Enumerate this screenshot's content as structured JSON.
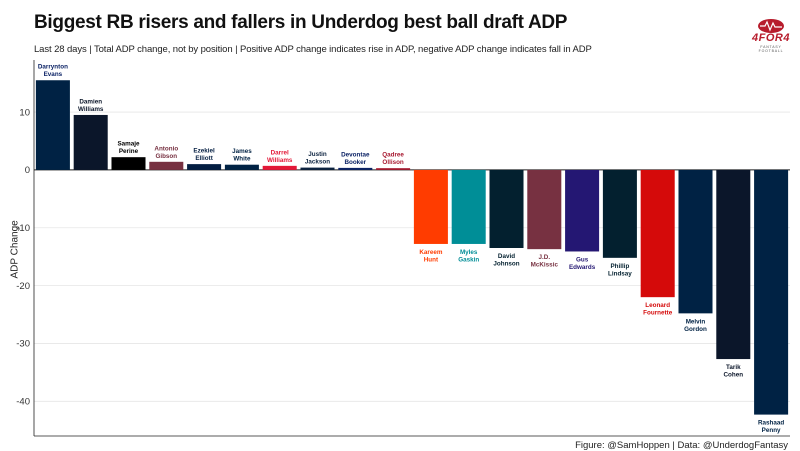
{
  "title": "Biggest RB risers and fallers in Underdog best ball draft ADP",
  "subtitle": "Last 28 days | Total ADP change, not by position | Positive ADP change indicates rise in ADP, negative ADP change indicates fall in ADP",
  "caption": "Figure: @SamHoppen | Data: @UnderdogFantasy",
  "logo": {
    "text": "4FOR4",
    "subtext": "FANTASY FOOTBALL",
    "icon": "football-heartbeat-icon",
    "color": "#b71c2c"
  },
  "chart_data": {
    "type": "bar",
    "title": "Biggest RB risers and fallers in Underdog best ball draft ADP",
    "xlabel": "",
    "ylabel": "ADP Change",
    "ylim": [
      -46,
      19
    ],
    "yticks": [
      10,
      0,
      -10,
      -20,
      -30,
      -40
    ],
    "grid": true,
    "legend": "none",
    "bars": [
      {
        "label": [
          "Darrynton",
          "Evans"
        ],
        "value": 15.5,
        "color": "#002244",
        "label_color": "#0b2265"
      },
      {
        "label": [
          "Damien",
          "Williams"
        ],
        "value": 9.5,
        "color": "#0b162a",
        "label_color": "#0b162a"
      },
      {
        "label": [
          "Samaje",
          "Perine"
        ],
        "value": 2.2,
        "color": "#000000",
        "label_color": "#000000"
      },
      {
        "label": [
          "Antonio",
          "Gibson"
        ],
        "value": 1.4,
        "color": "#773141",
        "label_color": "#773141"
      },
      {
        "label": [
          "Ezekiel",
          "Elliott"
        ],
        "value": 1.0,
        "color": "#041e42",
        "label_color": "#041e42"
      },
      {
        "label": [
          "James",
          "White"
        ],
        "value": 0.9,
        "color": "#002244",
        "label_color": "#002244"
      },
      {
        "label": [
          "Darrel",
          "Williams"
        ],
        "value": 0.7,
        "color": "#e31837",
        "label_color": "#e31837"
      },
      {
        "label": [
          "Justin",
          "Jackson"
        ],
        "value": 0.4,
        "color": "#0c2340",
        "label_color": "#0c2340"
      },
      {
        "label": [
          "Devontae",
          "Booker"
        ],
        "value": 0.35,
        "color": "#0b2265",
        "label_color": "#0b2265"
      },
      {
        "label": [
          "Qadree",
          "Ollison"
        ],
        "value": 0.3,
        "color": "#a71930",
        "label_color": "#a71930"
      },
      {
        "label": [
          "Kareem",
          "Hunt"
        ],
        "value": -12.8,
        "color": "#ff3c00",
        "label_color": "#ff3c00"
      },
      {
        "label": [
          "Myles",
          "Gaskin"
        ],
        "value": -12.8,
        "color": "#008e97",
        "label_color": "#008e97"
      },
      {
        "label": [
          "David",
          "Johnson"
        ],
        "value": -13.5,
        "color": "#03202f",
        "label_color": "#03202f"
      },
      {
        "label": [
          "J.D.",
          "McKissic"
        ],
        "value": -13.7,
        "color": "#773141",
        "label_color": "#773141"
      },
      {
        "label": [
          "Gus",
          "Edwards"
        ],
        "value": -14.1,
        "color": "#241773",
        "label_color": "#241773"
      },
      {
        "label": [
          "Phillip",
          "Lindsay"
        ],
        "value": -15.2,
        "color": "#03202f",
        "label_color": "#03202f"
      },
      {
        "label": [
          "Leonard",
          "Fournette"
        ],
        "value": -22.0,
        "color": "#d50a0a",
        "label_color": "#d50a0a"
      },
      {
        "label": [
          "Melvin",
          "Gordon"
        ],
        "value": -24.8,
        "color": "#002244",
        "label_color": "#002244"
      },
      {
        "label": [
          "Tarik",
          "Cohen"
        ],
        "value": -32.7,
        "color": "#0b162a",
        "label_color": "#0b162a"
      },
      {
        "label": [
          "Rashaad",
          "Penny"
        ],
        "value": -42.3,
        "color": "#002244",
        "label_color": "#002244"
      }
    ]
  }
}
